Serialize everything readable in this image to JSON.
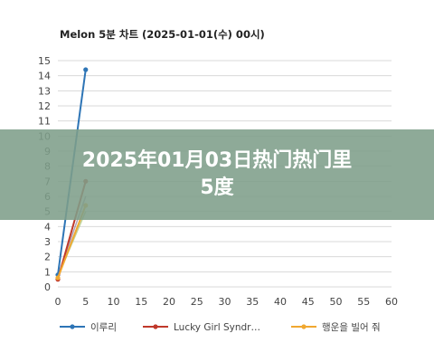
{
  "chart_data": {
    "type": "line",
    "title": "Melon 5분 차트 (2025-01-01(수) 00시)",
    "xlabel": "",
    "ylabel": "",
    "xlim": [
      0,
      60
    ],
    "ylim": [
      0,
      15
    ],
    "x_ticks": [
      0,
      5,
      10,
      15,
      20,
      25,
      30,
      35,
      40,
      45,
      50,
      55,
      60
    ],
    "y_ticks": [
      0,
      1,
      2,
      3,
      4,
      5,
      6,
      7,
      8,
      9,
      10,
      11,
      12,
      13,
      14,
      15
    ],
    "grid": true,
    "legend_position": "bottom",
    "series": [
      {
        "name": "이루리",
        "color": "#2e75b6",
        "x": [
          0,
          5
        ],
        "y": [
          0.8,
          14.4
        ]
      },
      {
        "name": "Lucky Girl Syndr…",
        "color": "#c0392b",
        "x": [
          0,
          5
        ],
        "y": [
          0.5,
          7.0
        ]
      },
      {
        "name": "행운을 빌어 줘",
        "color": "#f0a830",
        "x": [
          0,
          5
        ],
        "y": [
          0.6,
          5.4
        ]
      }
    ],
    "extra_series_colors": [
      "#8e7c9a",
      "#a8c26c"
    ]
  },
  "banner": {
    "line1": "2025年01月03日热门热门里",
    "line2": "5度"
  }
}
